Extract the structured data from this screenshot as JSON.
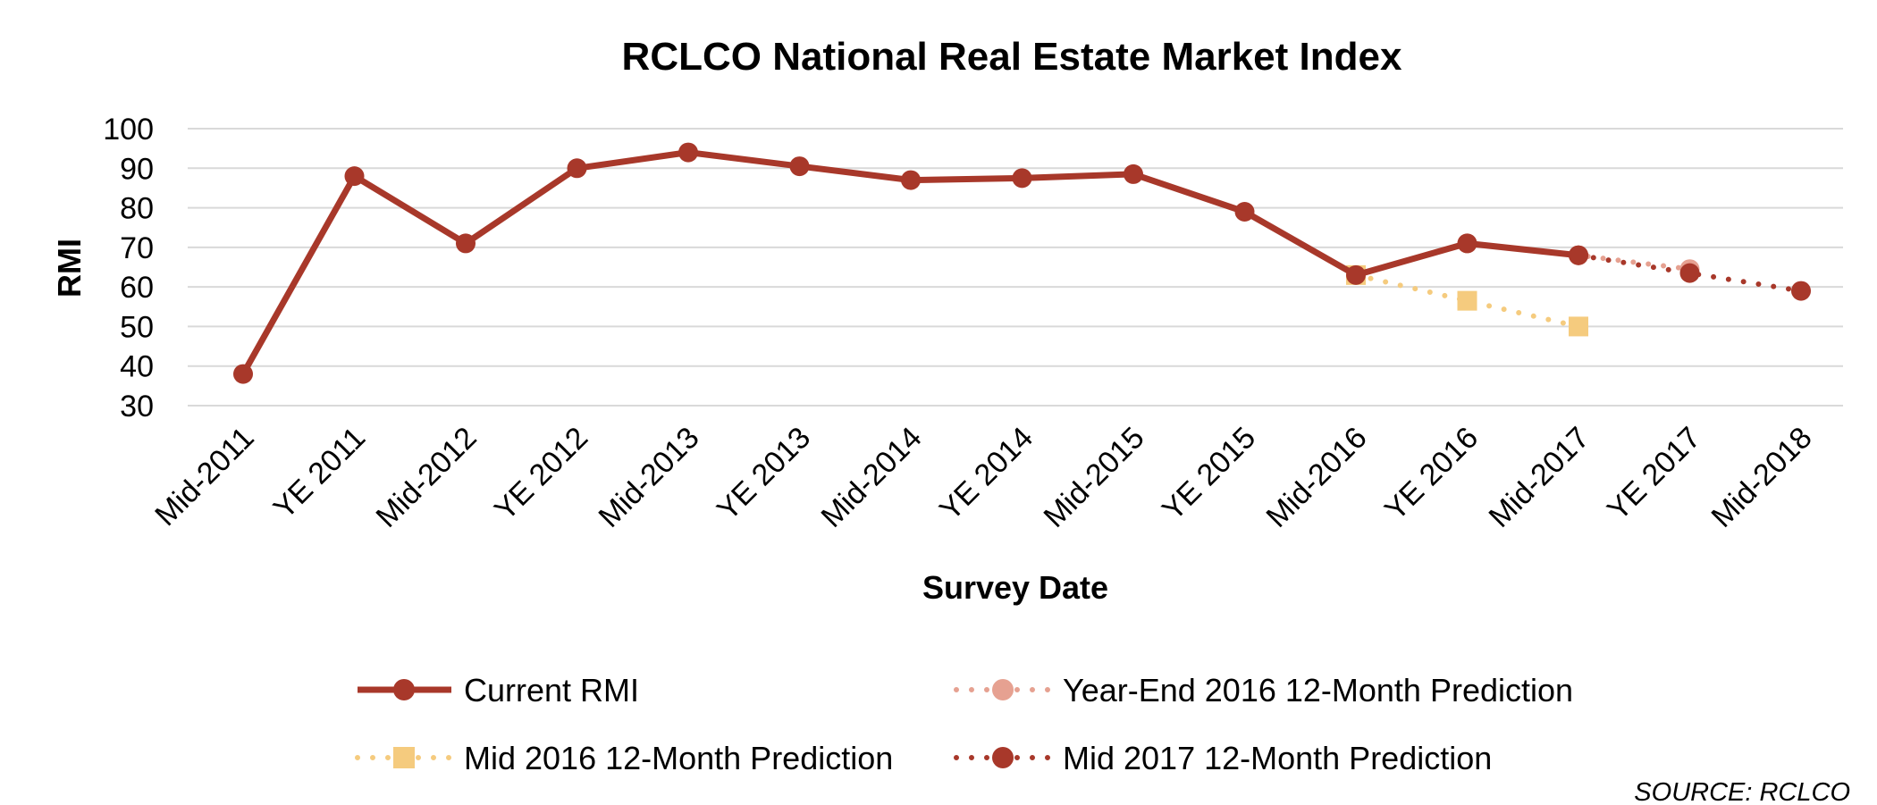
{
  "chart_data": {
    "type": "line",
    "title": "RCLCO National Real Estate Market Index",
    "xlabel": "Survey Date",
    "ylabel": "RMI",
    "ylim": [
      30,
      100
    ],
    "yticks": [
      30,
      40,
      50,
      60,
      70,
      80,
      90,
      100
    ],
    "grid": true,
    "legend_position": "bottom",
    "categories": [
      "Mid-2011",
      "YE 2011",
      "Mid-2012",
      "YE 2012",
      "Mid-2013",
      "YE 2013",
      "Mid-2014",
      "YE 2014",
      "Mid-2015",
      "YE 2015",
      "Mid-2016",
      "YE 2016",
      "Mid-2017",
      "YE 2017",
      "Mid-2018"
    ],
    "series": [
      {
        "name": "Current RMI",
        "style": "solid",
        "marker": "circle",
        "color": "#A8382A",
        "points": [
          {
            "x": "Mid-2011",
            "y": 38
          },
          {
            "x": "YE 2011",
            "y": 88
          },
          {
            "x": "Mid-2012",
            "y": 71
          },
          {
            "x": "YE 2012",
            "y": 90
          },
          {
            "x": "Mid-2013",
            "y": 94
          },
          {
            "x": "YE 2013",
            "y": 90.5
          },
          {
            "x": "Mid-2014",
            "y": 87
          },
          {
            "x": "YE 2014",
            "y": 87.5
          },
          {
            "x": "Mid-2015",
            "y": 88.5
          },
          {
            "x": "YE 2015",
            "y": 79
          },
          {
            "x": "Mid-2016",
            "y": 63
          },
          {
            "x": "YE 2016",
            "y": 71
          },
          {
            "x": "Mid-2017",
            "y": 68
          }
        ]
      },
      {
        "name": "Year-End 2016 12-Month Prediction",
        "style": "dotted",
        "marker": "circle",
        "color": "#E6A191",
        "points": [
          {
            "x": "YE 2016",
            "y": 71
          },
          {
            "x": "Mid-2017",
            "y": 68
          },
          {
            "x": "YE 2017",
            "y": 64.5
          }
        ]
      },
      {
        "name": "Mid 2016 12-Month Prediction",
        "style": "dotted",
        "marker": "square",
        "color": "#F5CB7E",
        "points": [
          {
            "x": "Mid-2016",
            "y": 63
          },
          {
            "x": "YE 2016",
            "y": 56.5
          },
          {
            "x": "Mid-2017",
            "y": 50
          }
        ]
      },
      {
        "name": "Mid 2017 12-Month Prediction",
        "style": "dotted",
        "marker": "circle",
        "color": "#A8382A",
        "points": [
          {
            "x": "Mid-2017",
            "y": 68
          },
          {
            "x": "YE 2017",
            "y": 63.5
          },
          {
            "x": "Mid-2018",
            "y": 59
          }
        ]
      }
    ],
    "source": "SOURCE:  RCLCO"
  }
}
